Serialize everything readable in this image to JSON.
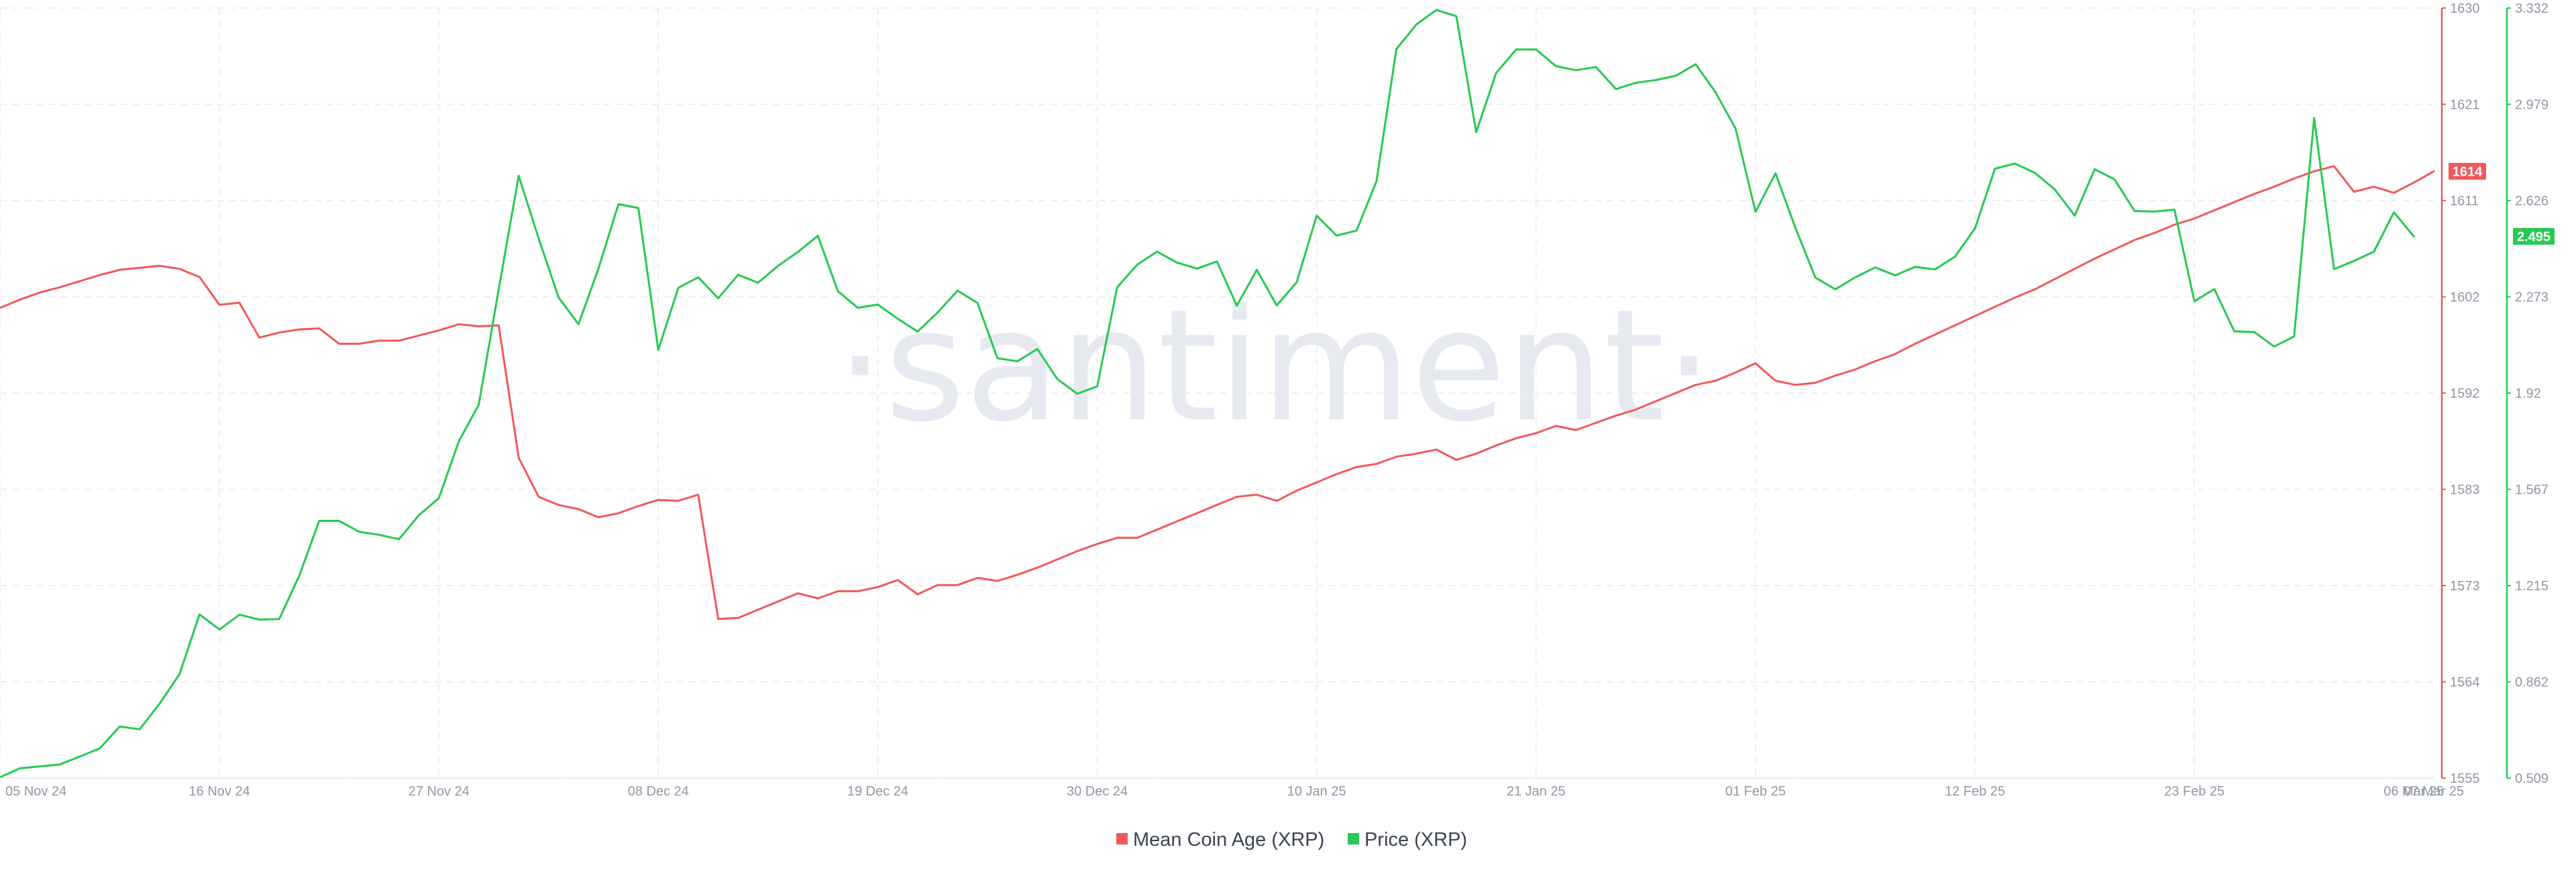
{
  "watermark": "·santiment·",
  "legend": [
    {
      "label": "Mean Coin Age (XRP)",
      "color": "#f0595a"
    },
    {
      "label": "Price (XRP)",
      "color": "#26c953"
    }
  ],
  "badges": {
    "age": {
      "text": "1614",
      "color": "#f0595a"
    },
    "price": {
      "text": "2.495",
      "color": "#26c953"
    }
  },
  "chart_data": {
    "type": "line",
    "x_tick_labels": [
      "05 Nov 24",
      "16 Nov 24",
      "27 Nov 24",
      "08 Dec 24",
      "19 Dec 24",
      "30 Dec 24",
      "10 Jan 25",
      "21 Jan 25",
      "01 Feb 25",
      "12 Feb 25",
      "23 Feb 25",
      "06 Mar 25",
      "07 Mar 25"
    ],
    "x_range": [
      "2024-11-05",
      "2025-03-07"
    ],
    "grid": true,
    "legend_position": "bottom-center",
    "axes": {
      "age": {
        "side": "right",
        "color": "#f0595a",
        "ylim": [
          1555,
          1630
        ],
        "ticks": [
          "1630",
          "1621",
          "1611",
          "1602",
          "1592",
          "1583",
          "1573",
          "1564",
          "1555"
        ]
      },
      "price": {
        "side": "right",
        "color": "#26c953",
        "ylim": [
          0.509,
          3.332
        ],
        "ticks": [
          "3.332",
          "2.979",
          "2.626",
          "2.273",
          "1.92",
          "1.567",
          "1.215",
          "0.862",
          "0.509"
        ]
      }
    },
    "series": [
      {
        "name": "Mean Coin Age (XRP)",
        "axis": "age",
        "color": "#f0595a",
        "points": [
          [
            "2024-11-05",
            1600.8
          ],
          [
            "2024-11-06",
            1601.6
          ],
          [
            "2024-11-07",
            1602.3
          ],
          [
            "2024-11-08",
            1602.8
          ],
          [
            "2024-11-09",
            1603.4
          ],
          [
            "2024-11-10",
            1604.0
          ],
          [
            "2024-11-11",
            1604.5
          ],
          [
            "2024-11-12",
            1604.7
          ],
          [
            "2024-11-13",
            1604.9
          ],
          [
            "2024-11-14",
            1604.6
          ],
          [
            "2024-11-15",
            1603.8
          ],
          [
            "2024-11-16",
            1601.1
          ],
          [
            "2024-11-17",
            1601.3
          ],
          [
            "2024-11-18",
            1597.9
          ],
          [
            "2024-11-19",
            1598.4
          ],
          [
            "2024-11-20",
            1598.7
          ],
          [
            "2024-11-21",
            1598.8
          ],
          [
            "2024-11-22",
            1597.3
          ],
          [
            "2024-11-23",
            1597.3
          ],
          [
            "2024-11-24",
            1597.6
          ],
          [
            "2024-11-25",
            1597.6
          ],
          [
            "2024-11-26",
            1598.1
          ],
          [
            "2024-11-27",
            1598.6
          ],
          [
            "2024-11-28",
            1599.2
          ],
          [
            "2024-11-29",
            1599.0
          ],
          [
            "2024-11-30",
            1599.1
          ],
          [
            "2024-12-01",
            1586.2
          ],
          [
            "2024-12-02",
            1582.4
          ],
          [
            "2024-12-03",
            1581.6
          ],
          [
            "2024-12-04",
            1581.2
          ],
          [
            "2024-12-05",
            1580.4
          ],
          [
            "2024-12-06",
            1580.8
          ],
          [
            "2024-12-07",
            1581.5
          ],
          [
            "2024-12-08",
            1582.1
          ],
          [
            "2024-12-09",
            1582.0
          ],
          [
            "2024-12-10",
            1582.6
          ],
          [
            "2024-12-11",
            1570.5
          ],
          [
            "2024-12-12",
            1570.6
          ],
          [
            "2024-12-13",
            1571.4
          ],
          [
            "2024-12-14",
            1572.2
          ],
          [
            "2024-12-15",
            1573.0
          ],
          [
            "2024-12-16",
            1572.5
          ],
          [
            "2024-12-17",
            1573.2
          ],
          [
            "2024-12-18",
            1573.2
          ],
          [
            "2024-12-19",
            1573.6
          ],
          [
            "2024-12-20",
            1574.3
          ],
          [
            "2024-12-21",
            1572.9
          ],
          [
            "2024-12-22",
            1573.8
          ],
          [
            "2024-12-23",
            1573.8
          ],
          [
            "2024-12-24",
            1574.5
          ],
          [
            "2024-12-25",
            1574.2
          ],
          [
            "2024-12-26",
            1574.8
          ],
          [
            "2024-12-27",
            1575.5
          ],
          [
            "2024-12-28",
            1576.3
          ],
          [
            "2024-12-29",
            1577.1
          ],
          [
            "2024-12-30",
            1577.8
          ],
          [
            "2024-12-31",
            1578.4
          ],
          [
            "2025-01-01",
            1578.4
          ],
          [
            "2025-01-02",
            1579.2
          ],
          [
            "2025-01-03",
            1580.0
          ],
          [
            "2025-01-04",
            1580.8
          ],
          [
            "2025-01-05",
            1581.6
          ],
          [
            "2025-01-06",
            1582.4
          ],
          [
            "2025-01-07",
            1582.6
          ],
          [
            "2025-01-08",
            1582.0
          ],
          [
            "2025-01-09",
            1583.0
          ],
          [
            "2025-01-10",
            1583.8
          ],
          [
            "2025-01-11",
            1584.6
          ],
          [
            "2025-01-12",
            1585.3
          ],
          [
            "2025-01-13",
            1585.6
          ],
          [
            "2025-01-14",
            1586.3
          ],
          [
            "2025-01-15",
            1586.6
          ],
          [
            "2025-01-16",
            1587.0
          ],
          [
            "2025-01-17",
            1586.0
          ],
          [
            "2025-01-18",
            1586.6
          ],
          [
            "2025-01-19",
            1587.4
          ],
          [
            "2025-01-20",
            1588.1
          ],
          [
            "2025-01-21",
            1588.6
          ],
          [
            "2025-01-22",
            1589.3
          ],
          [
            "2025-01-23",
            1588.9
          ],
          [
            "2025-01-24",
            1589.6
          ],
          [
            "2025-01-25",
            1590.3
          ],
          [
            "2025-01-26",
            1590.9
          ],
          [
            "2025-01-27",
            1591.7
          ],
          [
            "2025-01-28",
            1592.5
          ],
          [
            "2025-01-29",
            1593.3
          ],
          [
            "2025-01-30",
            1593.7
          ],
          [
            "2025-01-31",
            1594.5
          ],
          [
            "2025-02-01",
            1595.4
          ],
          [
            "2025-02-02",
            1593.7
          ],
          [
            "2025-02-03",
            1593.3
          ],
          [
            "2025-02-04",
            1593.5
          ],
          [
            "2025-02-05",
            1594.2
          ],
          [
            "2025-02-06",
            1594.8
          ],
          [
            "2025-02-07",
            1595.6
          ],
          [
            "2025-02-08",
            1596.3
          ],
          [
            "2025-02-09",
            1597.3
          ],
          [
            "2025-02-10",
            1598.2
          ],
          [
            "2025-02-11",
            1599.1
          ],
          [
            "2025-02-12",
            1600.0
          ],
          [
            "2025-02-13",
            1600.9
          ],
          [
            "2025-02-14",
            1601.8
          ],
          [
            "2025-02-15",
            1602.6
          ],
          [
            "2025-02-16",
            1603.6
          ],
          [
            "2025-02-17",
            1604.6
          ],
          [
            "2025-02-18",
            1605.6
          ],
          [
            "2025-02-19",
            1606.5
          ],
          [
            "2025-02-20",
            1607.4
          ],
          [
            "2025-02-21",
            1608.1
          ],
          [
            "2025-02-22",
            1608.9
          ],
          [
            "2025-02-23",
            1609.5
          ],
          [
            "2025-02-24",
            1610.3
          ],
          [
            "2025-02-25",
            1611.1
          ],
          [
            "2025-02-26",
            1611.9
          ],
          [
            "2025-02-27",
            1612.6
          ],
          [
            "2025-02-28",
            1613.4
          ],
          [
            "2025-03-01",
            1614.1
          ],
          [
            "2025-03-02",
            1614.6
          ],
          [
            "2025-03-03",
            1612.1
          ],
          [
            "2025-03-04",
            1612.6
          ],
          [
            "2025-03-05",
            1612.0
          ],
          [
            "2025-03-06",
            1613.0
          ],
          [
            "2025-03-07",
            1614.1
          ]
        ]
      },
      {
        "name": "Price (XRP)",
        "axis": "price",
        "color": "#26c953",
        "points": [
          [
            "2024-11-05",
            0.512
          ],
          [
            "2024-11-06",
            0.545
          ],
          [
            "2024-11-07",
            0.552
          ],
          [
            "2024-11-08",
            0.559
          ],
          [
            "2024-11-09",
            0.588
          ],
          [
            "2024-11-10",
            0.618
          ],
          [
            "2024-11-11",
            0.698
          ],
          [
            "2024-11-12",
            0.688
          ],
          [
            "2024-11-13",
            0.782
          ],
          [
            "2024-11-14",
            0.89
          ],
          [
            "2024-11-15",
            1.109
          ],
          [
            "2024-11-16",
            1.054
          ],
          [
            "2024-11-17",
            1.108
          ],
          [
            "2024-11-18",
            1.09
          ],
          [
            "2024-11-19",
            1.092
          ],
          [
            "2024-11-20",
            1.251
          ],
          [
            "2024-11-21",
            1.452
          ],
          [
            "2024-11-22",
            1.452
          ],
          [
            "2024-11-23",
            1.412
          ],
          [
            "2024-11-24",
            1.401
          ],
          [
            "2024-11-25",
            1.385
          ],
          [
            "2024-11-26",
            1.473
          ],
          [
            "2024-11-27",
            1.535
          ],
          [
            "2024-11-28",
            1.744
          ],
          [
            "2024-11-29",
            1.878
          ],
          [
            "2024-11-30",
            2.301
          ],
          [
            "2024-12-01",
            2.717
          ],
          [
            "2024-12-02",
            2.488
          ],
          [
            "2024-12-03",
            2.271
          ],
          [
            "2024-12-04",
            2.173
          ],
          [
            "2024-12-05",
            2.377
          ],
          [
            "2024-12-06",
            2.613
          ],
          [
            "2024-12-07",
            2.599
          ],
          [
            "2024-12-08",
            2.079
          ],
          [
            "2024-12-09",
            2.306
          ],
          [
            "2024-12-10",
            2.345
          ],
          [
            "2024-12-11",
            2.268
          ],
          [
            "2024-12-12",
            2.354
          ],
          [
            "2024-12-13",
            2.325
          ],
          [
            "2024-12-14",
            2.387
          ],
          [
            "2024-12-15",
            2.438
          ],
          [
            "2024-12-16",
            2.497
          ],
          [
            "2024-12-17",
            2.294
          ],
          [
            "2024-12-18",
            2.233
          ],
          [
            "2024-12-19",
            2.245
          ],
          [
            "2024-12-20",
            2.193
          ],
          [
            "2024-12-21",
            2.146
          ],
          [
            "2024-12-22",
            2.216
          ],
          [
            "2024-12-23",
            2.296
          ],
          [
            "2024-12-24",
            2.251
          ],
          [
            "2024-12-25",
            2.048
          ],
          [
            "2024-12-26",
            2.037
          ],
          [
            "2024-12-27",
            2.082
          ],
          [
            "2024-12-28",
            1.972
          ],
          [
            "2024-12-29",
            1.918
          ],
          [
            "2024-12-30",
            1.945
          ],
          [
            "2024-12-31",
            2.308
          ],
          [
            "2025-01-01",
            2.391
          ],
          [
            "2025-01-02",
            2.439
          ],
          [
            "2025-01-03",
            2.399
          ],
          [
            "2025-01-04",
            2.377
          ],
          [
            "2025-01-05",
            2.403
          ],
          [
            "2025-01-06",
            2.241
          ],
          [
            "2025-01-07",
            2.372
          ],
          [
            "2025-01-08",
            2.242
          ],
          [
            "2025-01-09",
            2.327
          ],
          [
            "2025-01-10",
            2.571
          ],
          [
            "2025-01-11",
            2.498
          ],
          [
            "2025-01-12",
            2.516
          ],
          [
            "2025-01-13",
            2.697
          ],
          [
            "2025-01-14",
            3.182
          ],
          [
            "2025-01-15",
            3.272
          ],
          [
            "2025-01-16",
            3.325
          ],
          [
            "2025-01-17",
            3.302
          ],
          [
            "2025-01-18",
            2.877
          ],
          [
            "2025-01-19",
            3.094
          ],
          [
            "2025-01-20",
            3.18
          ],
          [
            "2025-01-21",
            3.18
          ],
          [
            "2025-01-22",
            3.119
          ],
          [
            "2025-01-23",
            3.104
          ],
          [
            "2025-01-24",
            3.116
          ],
          [
            "2025-01-25",
            3.035
          ],
          [
            "2025-01-26",
            3.058
          ],
          [
            "2025-01-27",
            3.068
          ],
          [
            "2025-01-28",
            3.084
          ],
          [
            "2025-01-29",
            3.126
          ],
          [
            "2025-01-30",
            3.023
          ],
          [
            "2025-01-31",
            2.89
          ],
          [
            "2025-02-01",
            2.585
          ],
          [
            "2025-02-02",
            2.726
          ],
          [
            "2025-02-03",
            2.526
          ],
          [
            "2025-02-04",
            2.344
          ],
          [
            "2025-02-05",
            2.301
          ],
          [
            "2025-02-06",
            2.345
          ],
          [
            "2025-02-07",
            2.381
          ],
          [
            "2025-02-08",
            2.352
          ],
          [
            "2025-02-09",
            2.383
          ],
          [
            "2025-02-10",
            2.374
          ],
          [
            "2025-02-11",
            2.421
          ],
          [
            "2025-02-12",
            2.524
          ],
          [
            "2025-02-13",
            2.743
          ],
          [
            "2025-02-14",
            2.762
          ],
          [
            "2025-02-15",
            2.728
          ],
          [
            "2025-02-16",
            2.667
          ],
          [
            "2025-02-17",
            2.571
          ],
          [
            "2025-02-18",
            2.741
          ],
          [
            "2025-02-19",
            2.704
          ],
          [
            "2025-02-20",
            2.588
          ],
          [
            "2025-02-21",
            2.586
          ],
          [
            "2025-02-22",
            2.593
          ],
          [
            "2025-02-23",
            2.257
          ],
          [
            "2025-02-24",
            2.302
          ],
          [
            "2025-02-25",
            2.147
          ],
          [
            "2025-02-26",
            2.144
          ],
          [
            "2025-02-27",
            2.091
          ],
          [
            "2025-02-28",
            2.128
          ],
          [
            "2025-03-01",
            2.929
          ],
          [
            "2025-03-02",
            2.375
          ],
          [
            "2025-03-03",
            2.405
          ],
          [
            "2025-03-04",
            2.439
          ],
          [
            "2025-03-05",
            2.583
          ],
          [
            "2025-03-06",
            2.495
          ]
        ]
      }
    ]
  }
}
